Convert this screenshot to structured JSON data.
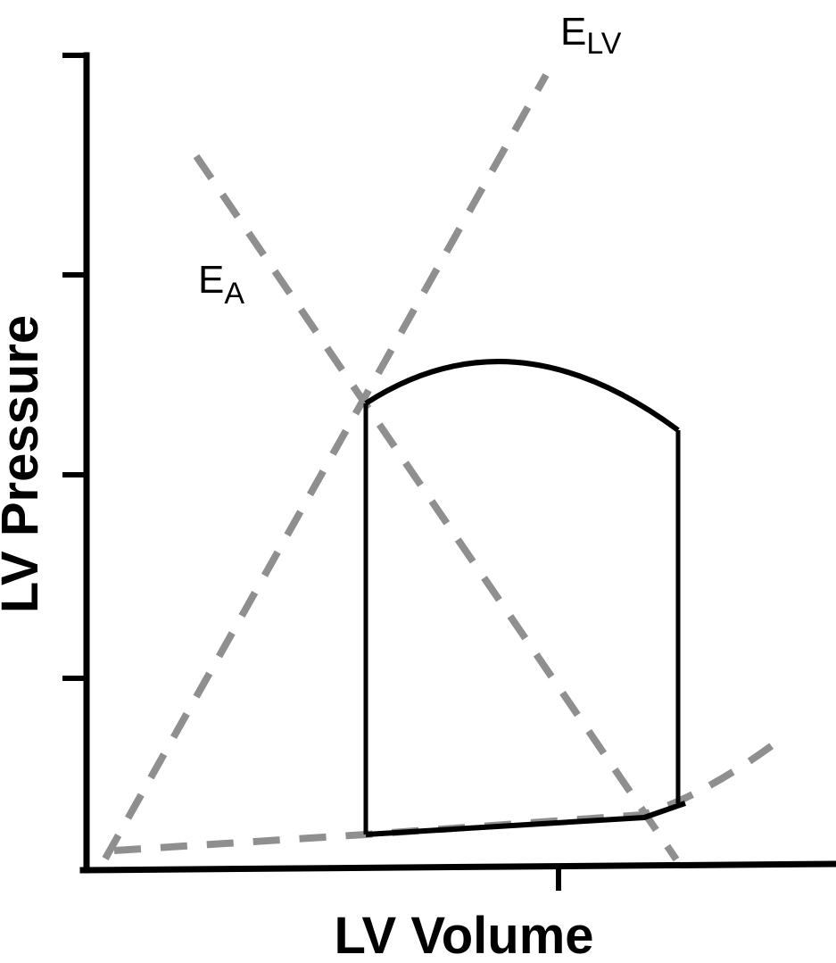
{
  "axes": {
    "x_title": "LV Volume",
    "y_title": "LV Pressure"
  },
  "labels": {
    "elv": {
      "main": "E",
      "sub": "LV"
    },
    "ea": {
      "main": "E",
      "sub": "A"
    }
  },
  "colors": {
    "loop": "#000000",
    "dashed_lines": "#8f8f8f",
    "axes": "#000000"
  }
}
